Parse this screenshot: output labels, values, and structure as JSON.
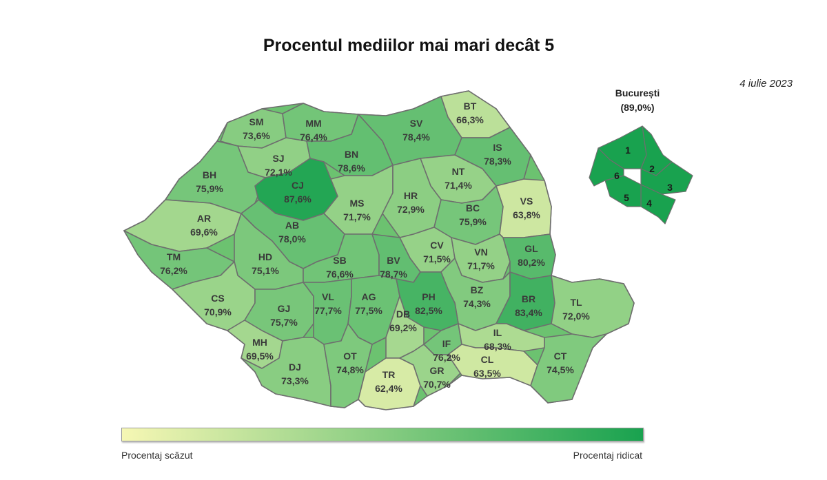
{
  "title": "Procentul mediilor mai mari decât 5",
  "date": "4 iulie 2023",
  "scale": {
    "min": 62.4,
    "max": 89.0,
    "low_color": "#f6f7b4",
    "high_color": "#19a24f"
  },
  "counties": [
    {
      "code": "SM",
      "value": "73,6%",
      "pct": 73.6
    },
    {
      "code": "MM",
      "value": "76,4%",
      "pct": 76.4
    },
    {
      "code": "SV",
      "value": "78,4%",
      "pct": 78.4
    },
    {
      "code": "BT",
      "value": "66,3%",
      "pct": 66.3
    },
    {
      "code": "SJ",
      "value": "72,1%",
      "pct": 72.1
    },
    {
      "code": "BN",
      "value": "78,6%",
      "pct": 78.6
    },
    {
      "code": "IS",
      "value": "78,3%",
      "pct": 78.3
    },
    {
      "code": "BH",
      "value": "75,9%",
      "pct": 75.9
    },
    {
      "code": "CJ",
      "value": "87,6%",
      "pct": 87.6
    },
    {
      "code": "NT",
      "value": "71,4%",
      "pct": 71.4
    },
    {
      "code": "MS",
      "value": "71,7%",
      "pct": 71.7
    },
    {
      "code": "HR",
      "value": "72,9%",
      "pct": 72.9
    },
    {
      "code": "BC",
      "value": "75,9%",
      "pct": 75.9
    },
    {
      "code": "VS",
      "value": "63,8%",
      "pct": 63.8
    },
    {
      "code": "AR",
      "value": "69,6%",
      "pct": 69.6
    },
    {
      "code": "AB",
      "value": "78,0%",
      "pct": 78.0
    },
    {
      "code": "CV",
      "value": "71,5%",
      "pct": 71.5
    },
    {
      "code": "VN",
      "value": "71,7%",
      "pct": 71.7
    },
    {
      "code": "GL",
      "value": "80,2%",
      "pct": 80.2
    },
    {
      "code": "TM",
      "value": "76,2%",
      "pct": 76.2
    },
    {
      "code": "HD",
      "value": "75,1%",
      "pct": 75.1
    },
    {
      "code": "SB",
      "value": "76,6%",
      "pct": 76.6
    },
    {
      "code": "BV",
      "value": "78,7%",
      "pct": 78.7
    },
    {
      "code": "BZ",
      "value": "74,3%",
      "pct": 74.3
    },
    {
      "code": "BR",
      "value": "83,4%",
      "pct": 83.4
    },
    {
      "code": "CS",
      "value": "70,9%",
      "pct": 70.9
    },
    {
      "code": "GJ",
      "value": "75,7%",
      "pct": 75.7
    },
    {
      "code": "VL",
      "value": "77,7%",
      "pct": 77.7
    },
    {
      "code": "AG",
      "value": "77,5%",
      "pct": 77.5
    },
    {
      "code": "PH",
      "value": "82,5%",
      "pct": 82.5
    },
    {
      "code": "DB",
      "value": "69,2%",
      "pct": 69.2
    },
    {
      "code": "TL",
      "value": "72,0%",
      "pct": 72.0
    },
    {
      "code": "MH",
      "value": "69,5%",
      "pct": 69.5
    },
    {
      "code": "IF",
      "value": "76,2%",
      "pct": 76.2
    },
    {
      "code": "IL",
      "value": "68,3%",
      "pct": 68.3
    },
    {
      "code": "DJ",
      "value": "73,3%",
      "pct": 73.3
    },
    {
      "code": "OT",
      "value": "74,8%",
      "pct": 74.8
    },
    {
      "code": "TR",
      "value": "62,4%",
      "pct": 62.4
    },
    {
      "code": "GR",
      "value": "70,7%",
      "pct": 70.7
    },
    {
      "code": "CL",
      "value": "63,5%",
      "pct": 63.5
    },
    {
      "code": "CT",
      "value": "74,5%",
      "pct": 74.5
    }
  ],
  "bucharest": {
    "name": "București",
    "value": "(89,0%)",
    "pct": 89.0,
    "sectors": [
      "1",
      "2",
      "3",
      "4",
      "5",
      "6"
    ]
  },
  "legend": {
    "low_label": "Procentaj scăzut",
    "high_label": "Procentaj ridicat"
  }
}
